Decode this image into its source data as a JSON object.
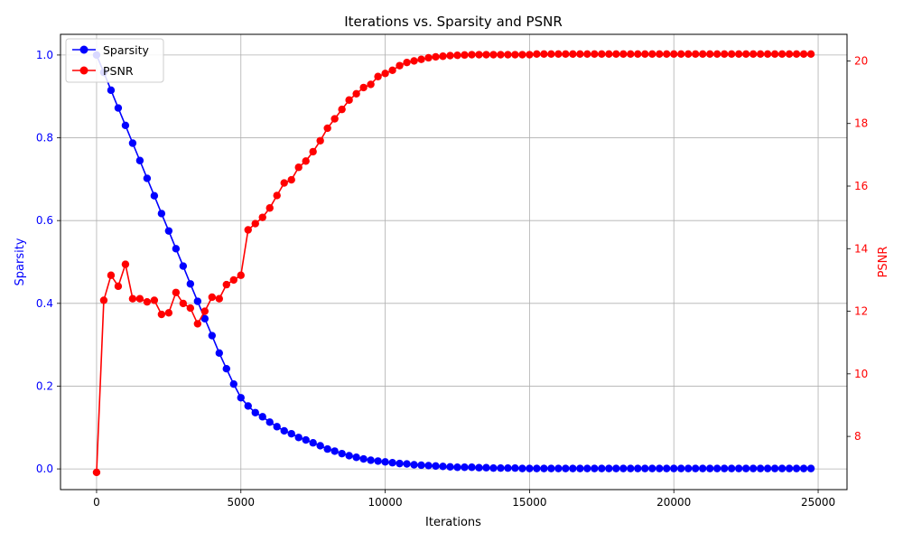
{
  "chart_data": {
    "type": "line",
    "title": "Iterations vs. Sparsity and PSNR",
    "xlabel": "Iterations",
    "ylabel_left": "Sparsity",
    "ylabel_right": "PSNR",
    "xlim": [
      -1250,
      26000
    ],
    "ylim_left": [
      -0.05,
      1.05
    ],
    "ylim_right": [
      6.3,
      20.85
    ],
    "xticks": [
      0,
      5000,
      10000,
      15000,
      20000,
      25000
    ],
    "xtick_labels": [
      "0",
      "5000",
      "10000",
      "15000",
      "20000",
      "25000"
    ],
    "yticks_left": [
      0.0,
      0.2,
      0.4,
      0.6,
      0.8,
      1.0
    ],
    "ytick_labels_left": [
      "0.0",
      "0.2",
      "0.4",
      "0.6",
      "0.8",
      "1.0"
    ],
    "yticks_right": [
      8,
      10,
      12,
      14,
      16,
      18,
      20
    ],
    "ytick_labels_right": [
      "8",
      "10",
      "12",
      "14",
      "16",
      "18",
      "20"
    ],
    "grid": true,
    "legend_position": "top-left",
    "x": [
      0,
      250,
      500,
      750,
      1000,
      1250,
      1500,
      1750,
      2000,
      2250,
      2500,
      2750,
      3000,
      3250,
      3500,
      3750,
      4000,
      4250,
      4500,
      4750,
      5000,
      5250,
      5500,
      5750,
      6000,
      6250,
      6500,
      6750,
      7000,
      7250,
      7500,
      7750,
      8000,
      8250,
      8500,
      8750,
      9000,
      9250,
      9500,
      9750,
      10000,
      10250,
      10500,
      10750,
      11000,
      11250,
      11500,
      11750,
      12000,
      12250,
      12500,
      12750,
      13000,
      13250,
      13500,
      13750,
      14000,
      14250,
      14500,
      14750,
      15000,
      15250,
      15500,
      15750,
      16000,
      16250,
      16500,
      16750,
      17000,
      17250,
      17500,
      17750,
      18000,
      18250,
      18500,
      18750,
      19000,
      19250,
      19500,
      19750,
      20000,
      20250,
      20500,
      20750,
      21000,
      21250,
      21500,
      21750,
      22000,
      22250,
      22500,
      22750,
      23000,
      23250,
      23500,
      23750,
      24000,
      24250,
      24500,
      24750
    ],
    "series": [
      {
        "name": "Sparsity",
        "axis": "left",
        "color": "#0000ff",
        "values": [
          1.0,
          0.958,
          0.915,
          0.872,
          0.83,
          0.787,
          0.745,
          0.702,
          0.66,
          0.617,
          0.575,
          0.532,
          0.49,
          0.447,
          0.405,
          0.363,
          0.322,
          0.28,
          0.242,
          0.205,
          0.172,
          0.152,
          0.136,
          0.126,
          0.113,
          0.102,
          0.092,
          0.085,
          0.076,
          0.07,
          0.063,
          0.056,
          0.048,
          0.043,
          0.037,
          0.032,
          0.028,
          0.024,
          0.021,
          0.019,
          0.017,
          0.015,
          0.013,
          0.012,
          0.01,
          0.009,
          0.008,
          0.007,
          0.006,
          0.005,
          0.004,
          0.004,
          0.004,
          0.003,
          0.003,
          0.002,
          0.002,
          0.002,
          0.002,
          0.001,
          0.001,
          0.001,
          0.001,
          0.001,
          0.001,
          0.001,
          0.001,
          0.001,
          0.001,
          0.001,
          0.001,
          0.001,
          0.001,
          0.001,
          0.001,
          0.001,
          0.001,
          0.001,
          0.001,
          0.001,
          0.001,
          0.001,
          0.001,
          0.001,
          0.001,
          0.001,
          0.001,
          0.001,
          0.001,
          0.001,
          0.001,
          0.001,
          0.001,
          0.001,
          0.001,
          0.001,
          0.001,
          0.001,
          0.001,
          0.001
        ]
      },
      {
        "name": "PSNR",
        "axis": "right",
        "color": "#ff0000",
        "values": [
          6.85,
          12.35,
          13.15,
          12.8,
          13.5,
          12.4,
          12.4,
          12.3,
          12.35,
          11.9,
          11.95,
          12.6,
          12.25,
          12.1,
          11.6,
          12.0,
          12.45,
          12.4,
          12.85,
          13.0,
          13.15,
          14.6,
          14.8,
          15.0,
          15.3,
          15.7,
          16.1,
          16.2,
          16.6,
          16.8,
          17.1,
          17.45,
          17.85,
          18.15,
          18.45,
          18.75,
          18.95,
          19.15,
          19.25,
          19.5,
          19.6,
          19.7,
          19.85,
          19.95,
          20.0,
          20.05,
          20.1,
          20.13,
          20.15,
          20.17,
          20.18,
          20.19,
          20.2,
          20.2,
          20.2,
          20.2,
          20.2,
          20.2,
          20.2,
          20.2,
          20.2,
          20.22,
          20.22,
          20.22,
          20.22,
          20.22,
          20.22,
          20.22,
          20.22,
          20.22,
          20.22,
          20.22,
          20.22,
          20.22,
          20.22,
          20.22,
          20.22,
          20.22,
          20.22,
          20.22,
          20.22,
          20.22,
          20.22,
          20.22,
          20.22,
          20.22,
          20.22,
          20.22,
          20.22,
          20.22,
          20.22,
          20.22,
          20.22,
          20.22,
          20.22,
          20.22,
          20.22,
          20.22,
          20.22,
          20.22
        ]
      }
    ]
  }
}
